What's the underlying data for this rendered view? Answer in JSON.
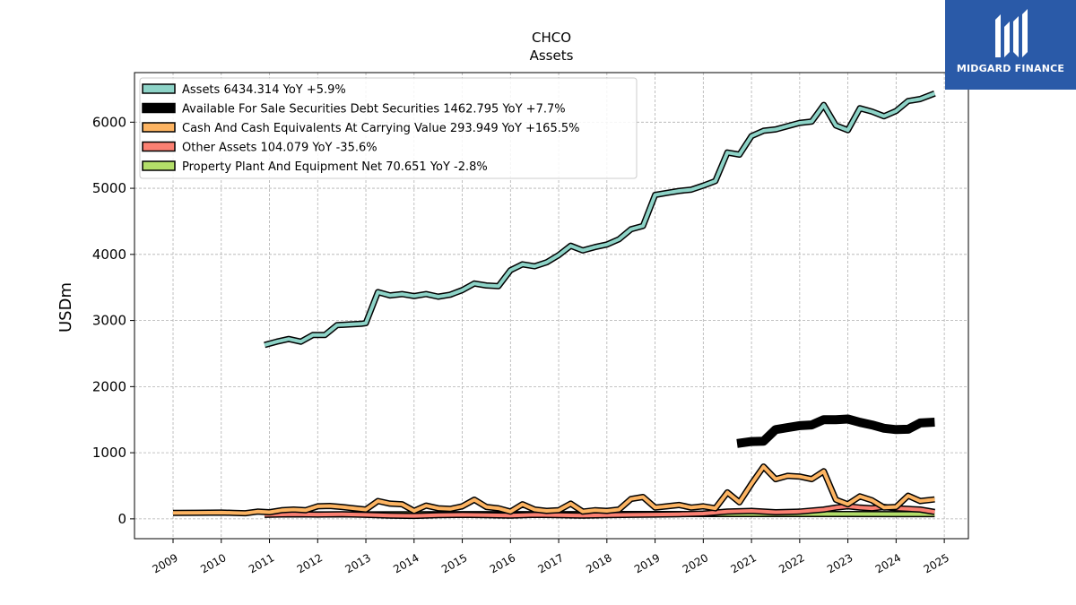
{
  "brand": {
    "name": "MIDGARD FINANCE",
    "color": "#2a5aa8"
  },
  "chart_data": {
    "type": "line",
    "title": "CHCO",
    "subtitle": "Assets",
    "ylabel": "USDm",
    "xlabel": "",
    "xlim": [
      2008.2,
      2025.5
    ],
    "ylim": [
      -300,
      6750
    ],
    "xticks": [
      2009,
      2010,
      2011,
      2012,
      2013,
      2014,
      2015,
      2016,
      2017,
      2018,
      2019,
      2020,
      2021,
      2022,
      2023,
      2024,
      2025
    ],
    "xtick_labels": [
      "2009",
      "2010",
      "2011",
      "2012",
      "2013",
      "2014",
      "2015",
      "2016",
      "2017",
      "2018",
      "2019",
      "2020",
      "2021",
      "2022",
      "2023",
      "2024",
      "2025"
    ],
    "yticks": [
      0,
      1000,
      2000,
      3000,
      4000,
      5000,
      6000
    ],
    "ytick_labels": [
      "0",
      "1000",
      "2000",
      "3000",
      "4000",
      "5000",
      "6000"
    ],
    "grid": true,
    "legend_position": "top-left",
    "series": [
      {
        "name": "Assets",
        "legend_label": "Assets  6434.314 YoY +5.9%",
        "color": "#8dd3c7",
        "style": "outlined",
        "x": [
          2010.9,
          2011.15,
          2011.4,
          2011.65,
          2011.9,
          2012.15,
          2012.4,
          2012.65,
          2012.9,
          2013.0,
          2013.25,
          2013.5,
          2013.75,
          2014.0,
          2014.25,
          2014.5,
          2014.75,
          2015.0,
          2015.25,
          2015.5,
          2015.75,
          2016.0,
          2016.25,
          2016.5,
          2016.75,
          2017.0,
          2017.25,
          2017.5,
          2017.75,
          2018.0,
          2018.25,
          2018.5,
          2018.75,
          2019.0,
          2019.25,
          2019.5,
          2019.75,
          2020.0,
          2020.25,
          2020.5,
          2020.75,
          2021.0,
          2021.25,
          2021.5,
          2021.75,
          2022.0,
          2022.25,
          2022.5,
          2022.75,
          2023.0,
          2023.25,
          2023.5,
          2023.75,
          2024.0,
          2024.25,
          2024.5,
          2024.8
        ],
        "values": [
          2630,
          2680,
          2720,
          2680,
          2780,
          2780,
          2930,
          2940,
          2950,
          2960,
          3430,
          3380,
          3400,
          3370,
          3400,
          3360,
          3390,
          3460,
          3560,
          3530,
          3520,
          3760,
          3850,
          3820,
          3880,
          3990,
          4130,
          4060,
          4110,
          4150,
          4230,
          4380,
          4430,
          4900,
          4930,
          4960,
          4980,
          5040,
          5110,
          5540,
          5510,
          5790,
          5870,
          5890,
          5940,
          5990,
          6010,
          6260,
          5950,
          5880,
          6210,
          6160,
          6090,
          6170,
          6320,
          6350,
          6434
        ]
      },
      {
        "name": "Available For Sale Securities Debt Securities",
        "legend_label": "Available For Sale Securities Debt Securities  1462.795 YoY +7.7%",
        "color": "#000000",
        "style": "thick",
        "x": [
          2020.7,
          2021.0,
          2021.25,
          2021.5,
          2021.75,
          2022.0,
          2022.25,
          2022.5,
          2022.75,
          2023.0,
          2023.25,
          2023.5,
          2023.75,
          2024.0,
          2024.25,
          2024.5,
          2024.8
        ],
        "values": [
          1140,
          1170,
          1175,
          1350,
          1380,
          1410,
          1420,
          1500,
          1500,
          1510,
          1460,
          1420,
          1370,
          1350,
          1355,
          1450,
          1463
        ]
      },
      {
        "name": "Cash And Cash Equivalents At Carrying Value",
        "legend_label": "Cash And Cash Equivalents At Carrying Value  293.949 YoY +165.5%",
        "color": "#fdb462",
        "style": "outlined",
        "x": [
          2009.0,
          2009.5,
          2010.0,
          2010.25,
          2010.5,
          2010.75,
          2011.0,
          2011.25,
          2011.5,
          2011.75,
          2012.0,
          2012.25,
          2012.5,
          2012.75,
          2013.0,
          2013.25,
          2013.5,
          2013.75,
          2014.0,
          2014.25,
          2014.5,
          2014.75,
          2015.0,
          2015.25,
          2015.5,
          2015.75,
          2016.0,
          2016.25,
          2016.5,
          2016.75,
          2017.0,
          2017.25,
          2017.5,
          2017.75,
          2018.0,
          2018.25,
          2018.5,
          2018.75,
          2019.0,
          2019.25,
          2019.5,
          2019.75,
          2020.0,
          2020.25,
          2020.5,
          2020.75,
          2021.0,
          2021.25,
          2021.5,
          2021.75,
          2022.0,
          2022.25,
          2022.5,
          2022.75,
          2023.0,
          2023.25,
          2023.5,
          2023.75,
          2024.0,
          2024.25,
          2024.5,
          2024.8
        ],
        "values": [
          90,
          92,
          95,
          90,
          85,
          110,
          100,
          130,
          140,
          130,
          190,
          195,
          180,
          160,
          140,
          270,
          230,
          220,
          120,
          200,
          160,
          150,
          190,
          290,
          180,
          160,
          110,
          220,
          140,
          120,
          130,
          230,
          110,
          130,
          120,
          140,
          300,
          330,
          170,
          190,
          210,
          170,
          190,
          160,
          400,
          250,
          530,
          790,
          600,
          650,
          640,
          600,
          720,
          290,
          220,
          340,
          280,
          170,
          180,
          350,
          270,
          294
        ]
      },
      {
        "name": "Other Assets",
        "legend_label": "Other Assets  104.079 YoY -35.6%",
        "color": "#fb8072",
        "style": "outlined",
        "x": [
          2010.9,
          2011.5,
          2012.0,
          2012.5,
          2013.0,
          2013.5,
          2014.0,
          2014.5,
          2015.0,
          2015.5,
          2016.0,
          2016.5,
          2017.0,
          2017.5,
          2018.0,
          2018.5,
          2019.0,
          2019.5,
          2020.0,
          2020.5,
          2021.0,
          2021.5,
          2022.0,
          2022.5,
          2022.75,
          2023.0,
          2023.25,
          2023.5,
          2023.75,
          2024.0,
          2024.25,
          2024.5,
          2024.8
        ],
        "values": [
          60,
          70,
          65,
          70,
          60,
          50,
          45,
          55,
          60,
          55,
          50,
          60,
          55,
          50,
          55,
          60,
          65,
          70,
          80,
          110,
          120,
          100,
          110,
          140,
          170,
          190,
          170,
          160,
          180,
          160,
          150,
          140,
          104
        ]
      },
      {
        "name": "Property Plant And Equipment Net",
        "legend_label": "Property Plant And Equipment Net  70.651 YoY -2.8%",
        "color": "#b3de69",
        "style": "outlined",
        "x": [
          2010.9,
          2012.0,
          2013.0,
          2014.0,
          2015.0,
          2016.0,
          2017.0,
          2018.0,
          2019.0,
          2020.0,
          2021.0,
          2022.0,
          2023.0,
          2024.0,
          2024.8
        ],
        "values": [
          66,
          67,
          68,
          70,
          71,
          72,
          72,
          73,
          73,
          73,
          73,
          73,
          73,
          72,
          71
        ]
      }
    ]
  }
}
